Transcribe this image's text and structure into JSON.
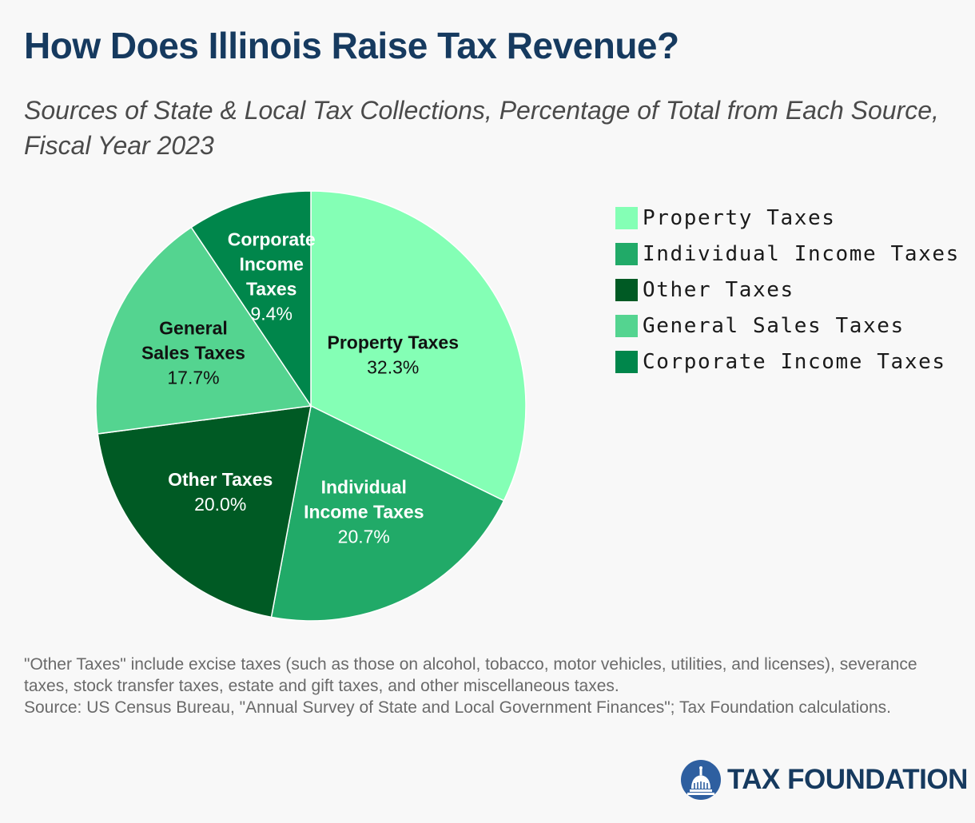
{
  "title": "How Does Illinois Raise Tax Revenue?",
  "subtitle": "Sources of State & Local Tax Collections, Percentage of Total from Each Source, Fiscal Year 2023",
  "chart_data": {
    "type": "pie",
    "categories": [
      "Property Taxes",
      "Individual Income Taxes",
      "Other Taxes",
      "General Sales Taxes",
      "Corporate Income Taxes"
    ],
    "values": [
      32.3,
      20.7,
      20.0,
      17.7,
      9.4
    ],
    "value_labels": [
      "32.3%",
      "20.7%",
      "20.0%",
      "17.7%",
      "9.4%"
    ],
    "slice_labels": [
      [
        "Property Taxes"
      ],
      [
        "Individual",
        "Income Taxes"
      ],
      [
        "Other Taxes"
      ],
      [
        "General",
        "Sales Taxes"
      ],
      [
        "Corporate",
        "Income",
        "Taxes"
      ]
    ],
    "colors": [
      "#84ffb5",
      "#21aa68",
      "#005a24",
      "#54d490",
      "#00864b"
    ],
    "label_text_colors": [
      "#111111",
      "#ffffff",
      "#ffffff",
      "#111111",
      "#ffffff"
    ],
    "legend_placement": "right",
    "start_angle_deg": 0,
    "direction": "clockwise"
  },
  "legend": {
    "items": [
      "Property Taxes",
      "Individual Income Taxes",
      "Other Taxes",
      "General Sales Taxes",
      "Corporate Income Taxes"
    ]
  },
  "notes": {
    "line1": "\"Other Taxes\" include excise taxes (such as those on alcohol, tobacco, motor vehicles, utilities, and licenses), severance taxes, stock transfer taxes, estate and gift taxes, and other miscellaneous taxes.",
    "line2": "Source: US Census Bureau, \"Annual Survey of State and Local Government Finances\"; Tax Foundation calculations."
  },
  "logo": {
    "text": "TAX FOUNDATION",
    "icon": "capitol-dome-icon",
    "color": "#163a5f"
  }
}
